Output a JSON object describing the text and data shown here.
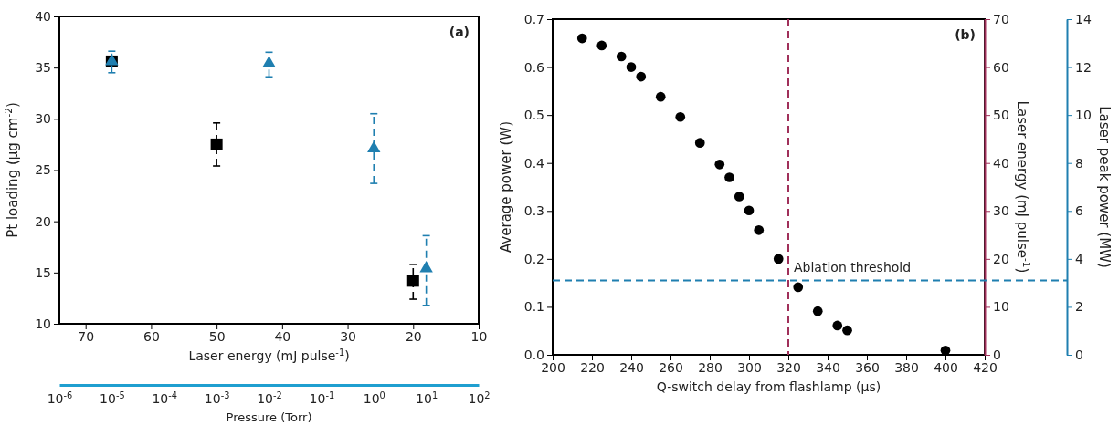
{
  "chart_data": [
    {
      "type": "scatter",
      "annotations": [
        "(a)"
      ],
      "ylabel": "Pt loading (µg cm$^{-2}$)",
      "xlabel": "Laser energy (mJ pulse$^{-1}$)",
      "x2label": "Pressure (Torr)",
      "xlim": [
        74,
        10
      ],
      "xticks": [
        70,
        60,
        50,
        40,
        30,
        20,
        10
      ],
      "ylim": [
        10,
        40
      ],
      "yticks": [
        10,
        15,
        20,
        25,
        30,
        35,
        40
      ],
      "x2lim": [
        1e-06,
        100
      ],
      "x2ticks": [
        {
          "value": 1e-06,
          "label": "10$^{-6}$"
        },
        {
          "value": 1e-05,
          "label": "10$^{-5}$"
        },
        {
          "value": 0.0001,
          "label": "10$^{-4}$"
        },
        {
          "value": 0.001,
          "label": "10$^{-3}$"
        },
        {
          "value": 0.01,
          "label": "10$^{-2}$"
        },
        {
          "value": 0.1,
          "label": "10$^{-1}$"
        },
        {
          "value": 1,
          "label": "10$^{0}$"
        },
        {
          "value": 10,
          "label": "10$^{1}$"
        },
        {
          "value": 100,
          "label": "10$^{2}$"
        }
      ],
      "log": "x2",
      "grid": false,
      "series": [
        {
          "color": "#000000",
          "marker": "square",
          "line_style": "dashed",
          "x": [
            66,
            50,
            20
          ],
          "values": [
            35.6,
            27.5,
            14.2
          ],
          "errors": [
            null,
            [
              25.4,
              29.6
            ],
            [
              12.4,
              15.8
            ]
          ]
        },
        {
          "color": "#1f7fb0",
          "marker": "triangle",
          "line_style": "dashed",
          "axis": "x2",
          "x": [
            1e-05,
            0.01,
            1,
            10
          ],
          "values": [
            35.6,
            35.4,
            27.1,
            15.4
          ],
          "errors": [
            [
              34.5,
              36.6
            ],
            [
              34.1,
              36.5
            ],
            [
              23.7,
              30.5
            ],
            [
              11.8,
              18.6
            ]
          ]
        }
      ]
    },
    {
      "type": "scatter",
      "annotations": [
        "(b)"
      ],
      "xlabel": "Q-switch delay from flashlamp (µs)",
      "ylabel": "Average power (W)",
      "y2label": "Laser energy (mJ pulse$^{-1}$)",
      "y3label": "Laser peak power (MW)",
      "xlim": [
        200,
        420
      ],
      "xticks": [
        200,
        220,
        240,
        260,
        280,
        300,
        320,
        340,
        360,
        380,
        400,
        420
      ],
      "ylim": [
        0,
        0.7
      ],
      "yticks": [
        {
          "value": 0,
          "label": "0.0"
        },
        0.1,
        0.2,
        0.3,
        0.4,
        0.5,
        0.6,
        0.7
      ],
      "y2lim": [
        0,
        70
      ],
      "y2ticks": [
        0,
        10,
        20,
        30,
        40,
        50,
        60,
        70
      ],
      "y3lim": [
        0,
        14
      ],
      "y3ticks": [
        0,
        2,
        4,
        6,
        8,
        10,
        12,
        14
      ],
      "grid": false,
      "ref_lines": [
        {
          "axis": "x",
          "value": 320,
          "color": "#a0305a",
          "line_style": "dashed"
        },
        {
          "axis": "y",
          "value": 0.155,
          "label": "Ablation threshold",
          "color": "#1f7fb0",
          "line_style": "dashed"
        }
      ],
      "series": [
        {
          "color": "#000000",
          "marker": "circle",
          "x": [
            215,
            225,
            235,
            240,
            245,
            255,
            265,
            275,
            285,
            290,
            295,
            300,
            305,
            315,
            325,
            335,
            345,
            350,
            400
          ],
          "values": [
            0.66,
            0.645,
            0.622,
            0.6,
            0.58,
            0.538,
            0.496,
            0.442,
            0.397,
            0.37,
            0.33,
            0.301,
            0.26,
            0.2,
            0.141,
            0.091,
            0.061,
            0.051,
            0.009
          ]
        }
      ]
    }
  ]
}
